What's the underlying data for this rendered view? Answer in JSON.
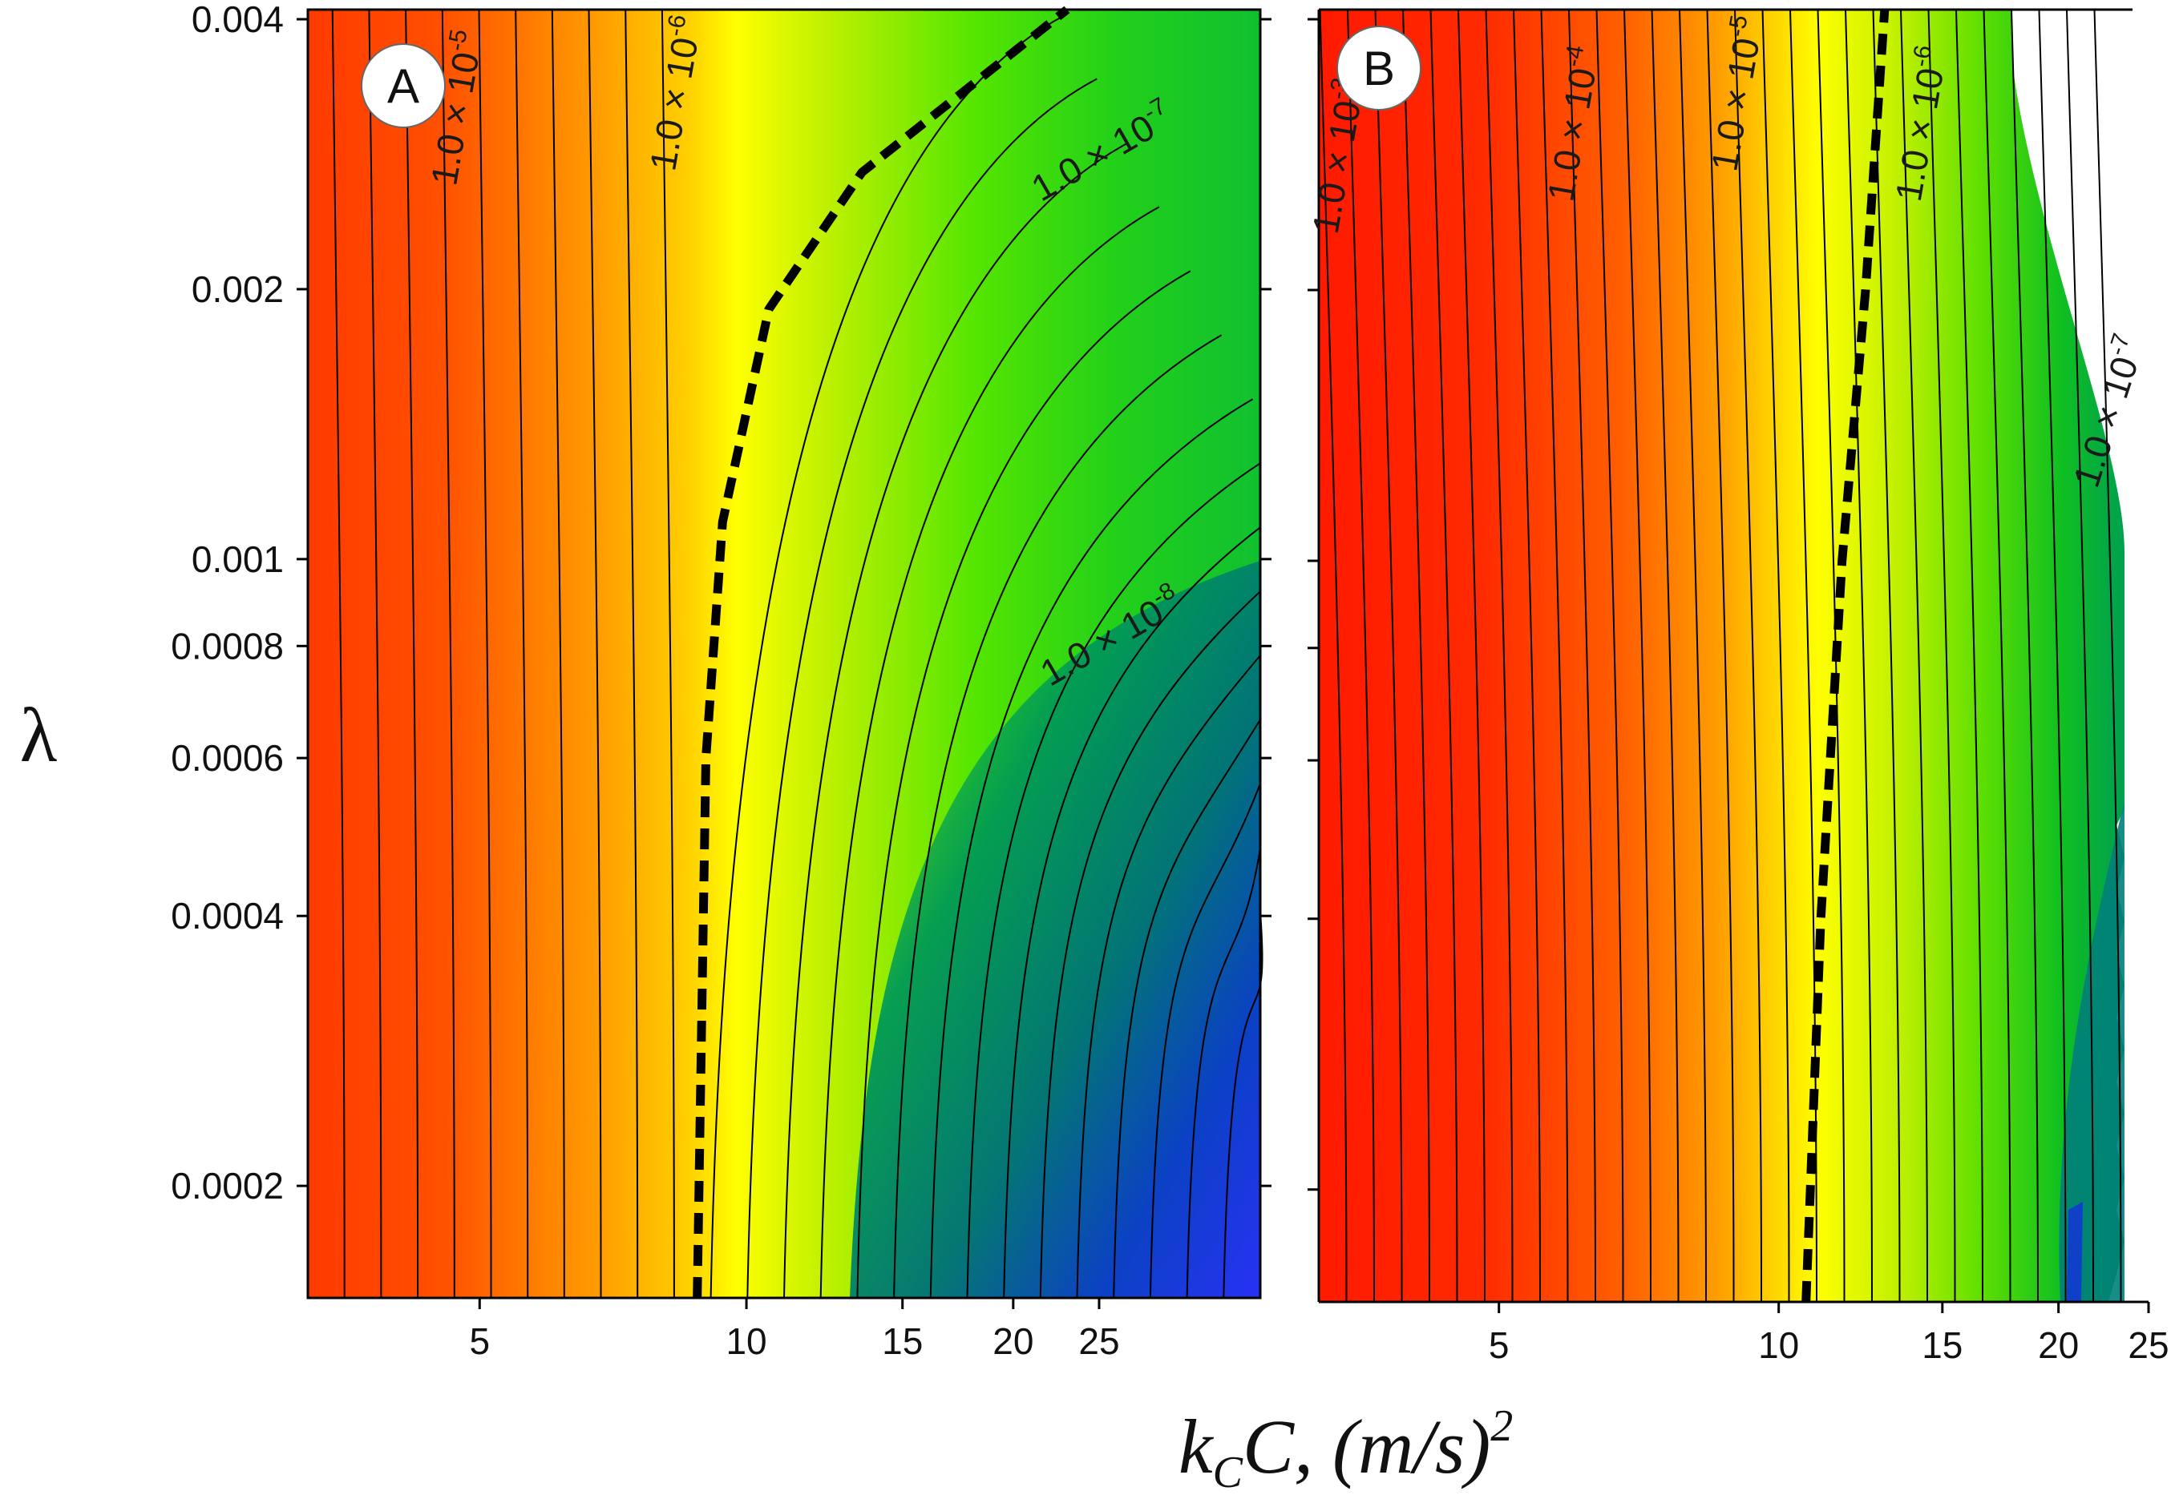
{
  "chart_data": [
    {
      "type": "contour",
      "panel_label": "A",
      "xscale": "log",
      "yscale": "log",
      "xlim": [
        3.2,
        38
      ],
      "ylim": [
        0.00015,
        0.0041
      ],
      "xticks": [
        5,
        10,
        15,
        20,
        25
      ],
      "yticks": [
        0.004,
        0.002,
        0.001,
        0.0008,
        0.0006,
        0.0004,
        0.0002
      ],
      "contour_labels": [
        {
          "text": "1.0 × 10",
          "exp": "-5",
          "x": 4.7,
          "y": 0.0026
        },
        {
          "text": "1.0 × 10",
          "exp": "-6",
          "x": 8.3,
          "y": 0.0027
        },
        {
          "text": "1.0 × 10",
          "exp": "-7",
          "x": 21.5,
          "y": 0.0025
        },
        {
          "text": "1.0 × 10",
          "exp": "-8",
          "x": 22.0,
          "y": 0.00072
        }
      ],
      "dashed_curve": [
        [
          8.8,
          0.00015
        ],
        [
          8.9,
          0.0003
        ],
        [
          9.0,
          0.0006
        ],
        [
          9.4,
          0.0011
        ],
        [
          10.6,
          0.0019
        ],
        [
          13.5,
          0.0027
        ],
        [
          23,
          0.0041
        ]
      ],
      "colormap": [
        "#ff3a00",
        "#ffa000",
        "#ffff00",
        "#66ee00",
        "#00b050",
        "#007a80",
        "#0033dd",
        "#2a2aff"
      ]
    },
    {
      "type": "contour",
      "panel_label": "B",
      "xscale": "log",
      "yscale": "log",
      "xlim": [
        3.2,
        25
      ],
      "ylim": [
        0.00015,
        0.0041
      ],
      "xticks": [
        5,
        10,
        15,
        20,
        25
      ],
      "yticks": [
        0.004,
        0.002,
        0.001,
        0.0008,
        0.0006,
        0.0004,
        0.0002
      ],
      "contour_labels": [
        {
          "text": "1.0 × 10",
          "exp": "-3",
          "x": 3.35,
          "y": 0.0023
        },
        {
          "text": "1.0 × 10",
          "exp": "-4",
          "x": 6.0,
          "y": 0.0025
        },
        {
          "text": "1.0 × 10",
          "exp": "-5",
          "x": 9.0,
          "y": 0.0027
        },
        {
          "text": "1.0 × 10",
          "exp": "-6",
          "x": 14.2,
          "y": 0.0025
        },
        {
          "text": "1.0 × 10",
          "exp": "-7",
          "x": 22.0,
          "y": 0.0012
        }
      ],
      "dashed_curve": [
        [
          10.7,
          0.00015
        ],
        [
          11.1,
          0.0004
        ],
        [
          11.7,
          0.001
        ],
        [
          12.4,
          0.002
        ],
        [
          13.0,
          0.0041
        ]
      ],
      "colormap": [
        "#ff2000",
        "#ff8a00",
        "#ffff00",
        "#66ee00",
        "#00b050",
        "#007a80",
        "#0033dd"
      ]
    }
  ],
  "axes": {
    "ylabel": "λ",
    "xlabel_k": "k",
    "xlabel_sub": "C",
    "xlabel_rest": "C, (m/s)",
    "xlabel_exp": "2"
  },
  "colors": {
    "text": "#111111",
    "contour_line": "#000000"
  }
}
